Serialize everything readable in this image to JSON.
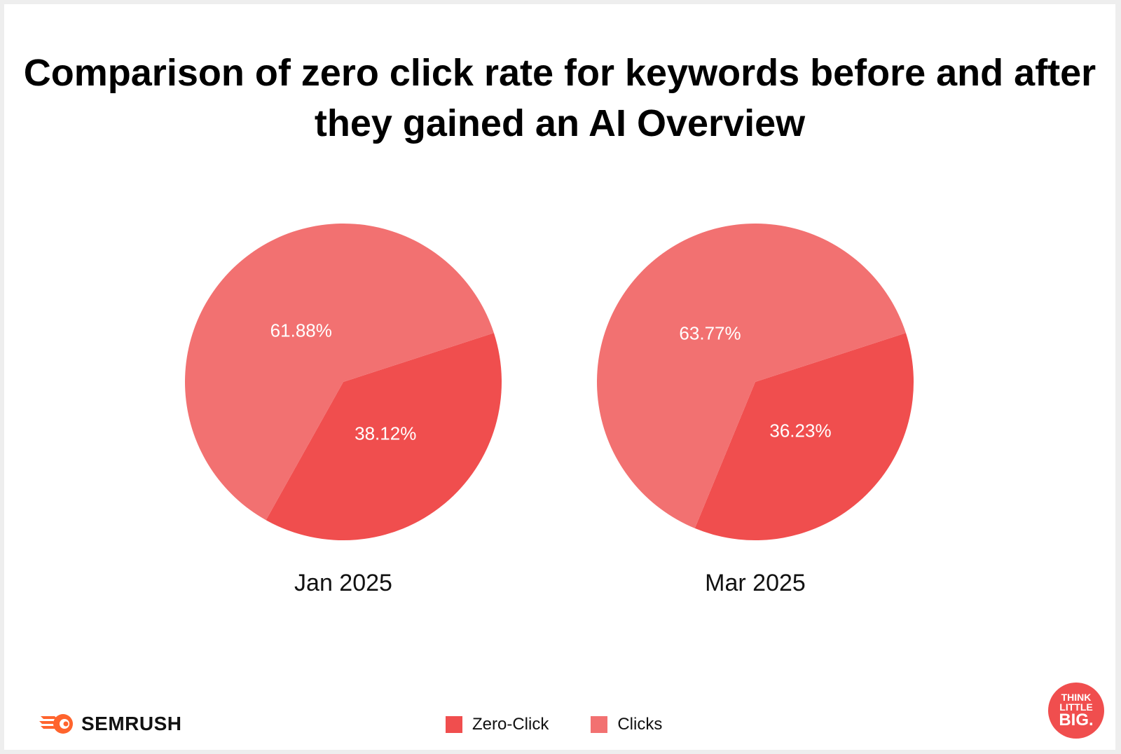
{
  "colors": {
    "zero_click": "#f04e4e",
    "clicks": "#f27171",
    "brand_orange": "#ff642d"
  },
  "chart_data": {
    "type": "pie",
    "title": "Comparison of zero click rate for keywords before and after they gained an AI Overview",
    "legend": {
      "placement": "bottom",
      "entries": [
        "Zero-Click",
        "Clicks"
      ]
    },
    "pies": [
      {
        "label": "Jan 2025",
        "slices": [
          {
            "name": "Zero-Click",
            "value": 38.12,
            "label": "38.12%"
          },
          {
            "name": "Clicks",
            "value": 61.88,
            "label": "61.88%"
          }
        ]
      },
      {
        "label": "Mar 2025",
        "slices": [
          {
            "name": "Zero-Click",
            "value": 36.23,
            "label": "36.23%"
          },
          {
            "name": "Clicks",
            "value": 63.77,
            "label": "63.77%"
          }
        ]
      }
    ]
  },
  "branding": {
    "semrush_label": "SEMRUSH",
    "semrush_icon": "semrush-flame-icon",
    "tlb_line1": "THINK",
    "tlb_line2": "LITTLE",
    "tlb_line3": "BIG."
  }
}
